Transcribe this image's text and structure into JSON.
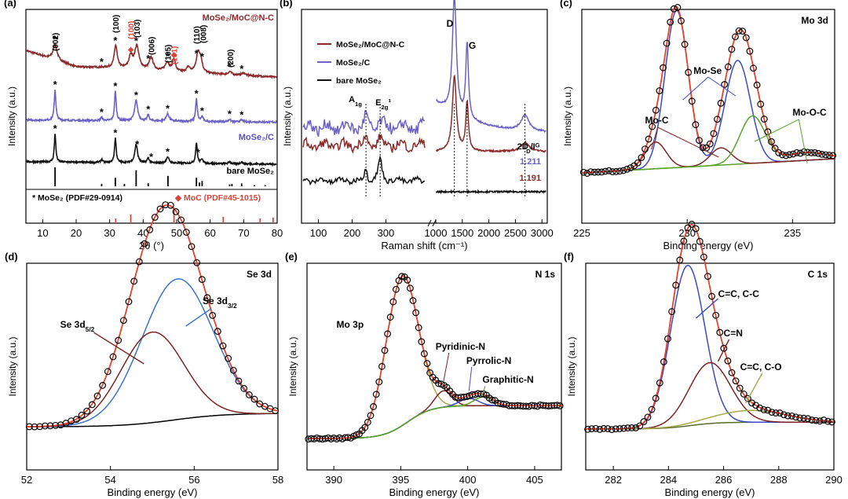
{
  "chart_data": [
    {
      "id": "a",
      "type": "line",
      "panel_label": "(a)",
      "xlabel": "2θ (°)",
      "ylabel": "Intensity (a.u.)",
      "xlim": [
        5,
        80
      ],
      "x_ticks": [
        "10",
        "20",
        "30",
        "40",
        "50",
        "60",
        "70",
        "80"
      ],
      "series": [
        {
          "name": "MoSe2/MoC@N-C",
          "color": "#8b2a2a",
          "offset": 2.1,
          "background": [
            [
              5,
              0.7
            ],
            [
              20,
              0.3
            ],
            [
              30,
              0.28
            ],
            [
              45,
              0.2
            ],
            [
              80,
              0.05
            ]
          ],
          "peaks": [
            [
              13.7,
              0.38,
              1.2
            ],
            [
              31.8,
              0.55,
              0.9
            ],
            [
              36.3,
              0.3,
              1.1
            ],
            [
              38.1,
              0.55,
              1.3
            ],
            [
              42.4,
              0.3,
              1.2
            ],
            [
              47.2,
              0.22,
              1.2
            ],
            [
              49.2,
              0.3,
              0.8
            ],
            [
              53.5,
              0.12,
              1
            ],
            [
              56.4,
              0.48,
              1.1
            ],
            [
              57.2,
              0.25,
              0.9
            ],
            [
              65.9,
              0.07,
              1
            ],
            [
              70,
              0.06,
              1
            ]
          ]
        },
        {
          "name": "MoSe2/C",
          "color": "#6b62c4",
          "offset": 1.05,
          "background": [
            [
              5,
              0.05
            ],
            [
              80,
              0.0
            ]
          ],
          "peaks": [
            [
              13.7,
              0.75,
              0.5
            ],
            [
              27.6,
              0.08,
              0.6
            ],
            [
              31.7,
              0.72,
              0.5
            ],
            [
              37.9,
              0.5,
              0.9
            ],
            [
              41.5,
              0.15,
              0.6
            ],
            [
              47.3,
              0.18,
              0.9
            ],
            [
              55.9,
              0.55,
              0.5
            ],
            [
              57.6,
              0.12,
              0.6
            ],
            [
              65.8,
              0.06,
              0.6
            ],
            [
              69.4,
              0.05,
              0.7
            ]
          ]
        },
        {
          "name": "bare MoSe2",
          "color": "#111111",
          "offset": 0.0,
          "background": [
            [
              5,
              0.08
            ],
            [
              80,
              0.02
            ]
          ],
          "peaks": [
            [
              13.7,
              0.7,
              0.45
            ],
            [
              27.6,
              0.07,
              0.6
            ],
            [
              31.7,
              0.6,
              0.5
            ],
            [
              37.9,
              0.45,
              0.8
            ],
            [
              41.5,
              0.12,
              0.6
            ],
            [
              47.3,
              0.15,
              0.8
            ],
            [
              55.9,
              0.5,
              0.5
            ],
            [
              57.6,
              0.11,
              0.6
            ],
            [
              65.8,
              0.05,
              0.6
            ],
            [
              69.4,
              0.05,
              0.6
            ]
          ]
        }
      ],
      "peak_labels": [
        {
          "x": 13.7,
          "text": "(002)",
          "color": "#000000"
        },
        {
          "x": 31.7,
          "text": "(100)",
          "color": "#000000"
        },
        {
          "x": 36.3,
          "text": "(100)",
          "color": "#d9453b"
        },
        {
          "x": 38.1,
          "text": "(103)",
          "color": "#000000"
        },
        {
          "x": 42.4,
          "text": "(006)",
          "color": "#000000"
        },
        {
          "x": 47.3,
          "text": "(105)",
          "color": "#000000"
        },
        {
          "x": 49.2,
          "text": "(101)",
          "color": "#d9453b"
        },
        {
          "x": 55.9,
          "text": "(110)",
          "color": "#000000"
        },
        {
          "x": 57.8,
          "text": "(008)",
          "color": "#000000"
        },
        {
          "x": 65.9,
          "text": "(200)",
          "color": "#000000"
        }
      ],
      "series_labels": [
        {
          "text": "MoSe₂/MoC@N-C",
          "color": "#8b2a2a"
        },
        {
          "text": "MoSe₂/C",
          "color": "#5a50c8"
        },
        {
          "text": "bare MoSe₂",
          "color": "#000000"
        }
      ],
      "legend_ref": [
        {
          "marker": "*",
          "text": "MoSe₂ (PDF#29-0914)",
          "color": "#000000"
        },
        {
          "marker": "◆",
          "text": "MoC (PDF#45-1015)",
          "color": "#d9453b"
        }
      ],
      "ref_mose2": [
        [
          13.7,
          1.0
        ],
        [
          27.6,
          0.12
        ],
        [
          31.7,
          0.45
        ],
        [
          34.4,
          0.12
        ],
        [
          37.9,
          0.85
        ],
        [
          41.5,
          0.16
        ],
        [
          47.4,
          0.55
        ],
        [
          55.9,
          0.45
        ],
        [
          56.8,
          0.2
        ],
        [
          57.6,
          0.28
        ],
        [
          65.8,
          0.1
        ],
        [
          66.5,
          0.12
        ],
        [
          69.4,
          0.15
        ],
        [
          73.2,
          0.06
        ],
        [
          76.4,
          0.06
        ]
      ],
      "ref_moc": [
        [
          31.8,
          0.3
        ],
        [
          36.3,
          0.55
        ],
        [
          49.2,
          1.0
        ],
        [
          63.9,
          0.4
        ],
        [
          74.9,
          0.3
        ],
        [
          78.8,
          0.35
        ]
      ]
    },
    {
      "id": "b",
      "type": "line",
      "panel_label": "(b)",
      "xlabel": "Raman shift (cm⁻¹)",
      "ylabel": "Intensity (a.u.)",
      "x_ticks_left": [
        "100",
        "200",
        "300"
      ],
      "x_ticks_right": [
        "1000",
        "1500",
        "2000",
        "2500",
        "3000"
      ],
      "xlim_left": [
        50,
        420
      ],
      "xlim_right": [
        1000,
        3100
      ],
      "legend": [
        {
          "text": "MoSe₂/MoC@N-C",
          "color": "#8b2a2a"
        },
        {
          "text": "MoSe₂/C",
          "color": "#6b62c4"
        },
        {
          "text": "bare MoSe₂",
          "color": "#111111"
        }
      ],
      "peak_labels": [
        "A1g",
        "E2g1",
        "D",
        "G",
        "2D"
      ],
      "id_ig_label": "ID/IG",
      "id_ig_values": [
        {
          "series": "MoSe2/C",
          "value": "1.211"
        },
        {
          "series": "MoSe2/MoC@N-C",
          "value": "1.191"
        }
      ]
    },
    {
      "id": "c",
      "type": "line",
      "panel_label": "(c)",
      "title": "Mo 3d",
      "xlabel": "Binding energy (eV)",
      "ylabel": "Intensity (a.u.)",
      "xlim": [
        225,
        237
      ],
      "x_ticks": [
        "225",
        "230",
        "235"
      ],
      "components": [
        {
          "name": "Mo-Se",
          "color": "#3a49c9",
          "peaks": [
            [
              229.5,
              1.0,
              0.55
            ],
            [
              232.4,
              0.66,
              0.6
            ]
          ]
        },
        {
          "name": "Mo-C",
          "color": "#7c2424",
          "peaks": [
            [
              228.5,
              0.17,
              0.5
            ],
            [
              231.6,
              0.11,
              0.5
            ]
          ]
        },
        {
          "name": "Mo-O-C",
          "color": "#5aa12b",
          "peaks": [
            [
              233.1,
              0.3,
              0.6
            ],
            [
              235.6,
              0.05,
              1.0
            ]
          ]
        }
      ],
      "labels": [
        "Mo-Se",
        "Mo-C",
        "Mo-O-C"
      ]
    },
    {
      "id": "d",
      "type": "line",
      "panel_label": "(d)",
      "title": "Se 3d",
      "xlabel": "Binding energy (eV)",
      "ylabel": "Intensity (a.u.)",
      "xlim": [
        52,
        58
      ],
      "x_ticks": [
        "52",
        "54",
        "56",
        "58"
      ],
      "components": [
        {
          "name": "Se 3d3/2",
          "color": "#3a73c9",
          "center": 55.6,
          "height": 0.73,
          "width": 0.85
        },
        {
          "name": "Se 3d5/2",
          "color": "#7c2424",
          "center": 55.0,
          "height": 0.47,
          "width": 0.75
        }
      ],
      "labels": [
        "Se 3d3/2",
        "Se 3d5/2"
      ]
    },
    {
      "id": "e",
      "type": "line",
      "panel_label": "(e)",
      "title": "N 1s",
      "xlabel": "Binding energy (eV)",
      "ylabel": "Intensity (a.u.)",
      "xlim": [
        388,
        407
      ],
      "x_ticks": [
        "390",
        "395",
        "400",
        "405"
      ],
      "components": [
        {
          "name": "Mo 3p",
          "color": "#a3a84a",
          "center": 395.1,
          "height": 1.0,
          "width": 1.2
        },
        {
          "name": "Pyridinic-N",
          "color": "#7c2424",
          "center": 398.2,
          "height": 0.11,
          "width": 0.65
        },
        {
          "name": "Pyrrolic-N",
          "color": "#3a49c9",
          "center": 400.1,
          "height": 0.05,
          "width": 0.7
        },
        {
          "name": "Graphitic-N",
          "color": "#5aa12b",
          "center": 401.2,
          "height": 0.06,
          "width": 0.7
        }
      ],
      "labels": [
        "Mo 3p",
        "Pyridinic-N",
        "Pyrrolic-N",
        "Graphitic-N"
      ]
    },
    {
      "id": "f",
      "type": "line",
      "panel_label": "(f)",
      "title": "C 1s",
      "xlabel": "Binding energy (eV)",
      "ylabel": "Intensity (a.u.)",
      "xlim": [
        281,
        290
      ],
      "x_ticks": [
        "282",
        "284",
        "286",
        "288",
        "290"
      ],
      "components": [
        {
          "name": "C=C, C-C",
          "color": "#3a49c9",
          "center": 284.7,
          "height": 0.95,
          "width": 0.62
        },
        {
          "name": "C=N",
          "color": "#7c2424",
          "center": 285.5,
          "height": 0.36,
          "width": 0.75
        },
        {
          "name": "C=C, C-O",
          "color": "#a3a84a",
          "center": 287.0,
          "height": 0.07,
          "width": 1.3
        }
      ],
      "labels": [
        "C=C, C-C",
        "C=N",
        "C=C, C-O"
      ]
    }
  ]
}
